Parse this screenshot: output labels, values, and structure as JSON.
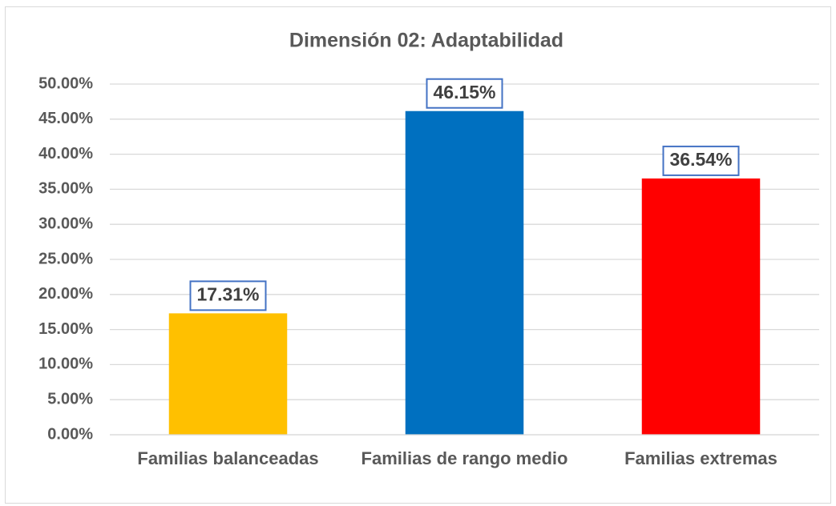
{
  "chart_data": {
    "type": "bar",
    "title": "Dimensión 02: Adaptabilidad",
    "categories": [
      "Familias balanceadas",
      "Familias de rango medio",
      "Familias extremas"
    ],
    "values": [
      17.31,
      46.15,
      36.54
    ],
    "value_labels": [
      "17.31%",
      "46.15%",
      "36.54%"
    ],
    "colors": [
      "#FFC000",
      "#0070C0",
      "#FF0000"
    ],
    "ylim": [
      0,
      50
    ],
    "yticks": [
      {
        "value": 0,
        "label": "0.00%"
      },
      {
        "value": 5,
        "label": "5.00%"
      },
      {
        "value": 10,
        "label": "10.00%"
      },
      {
        "value": 15,
        "label": "15.00%"
      },
      {
        "value": 20,
        "label": "20.00%"
      },
      {
        "value": 25,
        "label": "25.00%"
      },
      {
        "value": 30,
        "label": "30.00%"
      },
      {
        "value": 35,
        "label": "35.00%"
      },
      {
        "value": 40,
        "label": "40.00%"
      },
      {
        "value": 45,
        "label": "45.00%"
      },
      {
        "value": 50,
        "label": "50.00%"
      }
    ],
    "grid": true
  }
}
